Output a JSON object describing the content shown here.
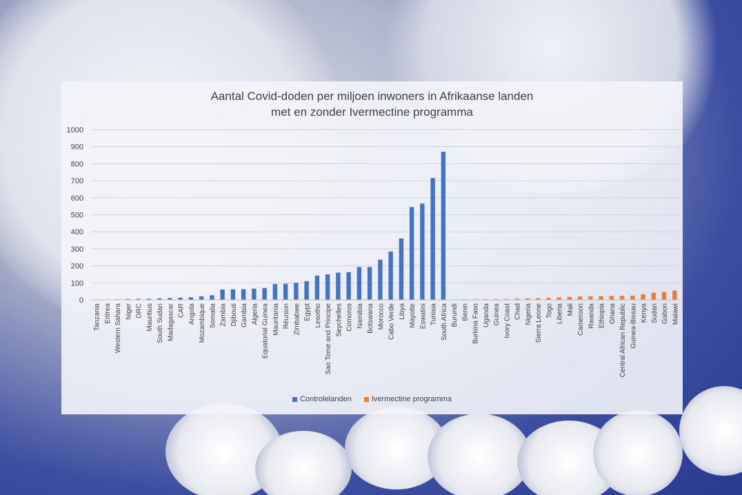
{
  "chart_data": {
    "type": "bar",
    "title": "Aantal Covid-doden per miljoen inwoners in Afrikaanse landen\nmet en zonder Ivermectine programma",
    "xlabel": "",
    "ylabel": "",
    "ylim": [
      0,
      1000
    ],
    "yticks": [
      0,
      100,
      200,
      300,
      400,
      500,
      600,
      700,
      800,
      900,
      1000
    ],
    "grid": true,
    "legend": "bottom",
    "series": [
      {
        "name": "Controlelanden",
        "color": "#4472c4",
        "categories": [
          "Tanzania",
          "Eritrea",
          "Western Sahara",
          "Niger",
          "DRC",
          "Mauritius",
          "South Sudan",
          "Madagascar",
          "CAR",
          "Angola",
          "Mozambique",
          "Somalia",
          "Zambia",
          "Djibouti",
          "Gambia",
          "Algeria",
          "Equatorial Guinea",
          "Mauritania",
          "Réunion",
          "Zimbabwe",
          "Egypt",
          "Lesotho",
          "Sao Tome and Principe",
          "Seychelles",
          "Comoros",
          "Namibia",
          "Botswana",
          "Morocco",
          "Cabo Verde",
          "Libya",
          "Mayotte",
          "Eswatini",
          "Tunisia",
          "South Africa"
        ],
        "values": [
          1,
          2,
          3,
          5,
          6,
          7,
          9,
          11,
          13,
          15,
          21,
          27,
          61,
          62,
          63,
          66,
          70,
          93,
          95,
          100,
          110,
          143,
          150,
          160,
          163,
          193,
          193,
          236,
          284,
          361,
          545,
          566,
          716,
          870
        ]
      },
      {
        "name": "Ivermectine programma",
        "color": "#ed7d31",
        "categories": [
          "Burundi",
          "Benin",
          "Burkina Faso",
          "Uganda",
          "Guinea",
          "Ivory Coast",
          "Chad",
          "Nigeria",
          "Sierra Leone",
          "Togo",
          "Liberia",
          "Mali",
          "Cameroon",
          "Rwanda",
          "Ethiopia",
          "Ghana",
          "Central African Republic",
          "Guinea-Bissau",
          "Kenya",
          "Sudan",
          "Gabon",
          "Malawi"
        ],
        "values": [
          1,
          3,
          3,
          4,
          5,
          5,
          7,
          9,
          10,
          12,
          15,
          17,
          20,
          21,
          22,
          23,
          24,
          25,
          33,
          42,
          46,
          55
        ]
      }
    ]
  }
}
